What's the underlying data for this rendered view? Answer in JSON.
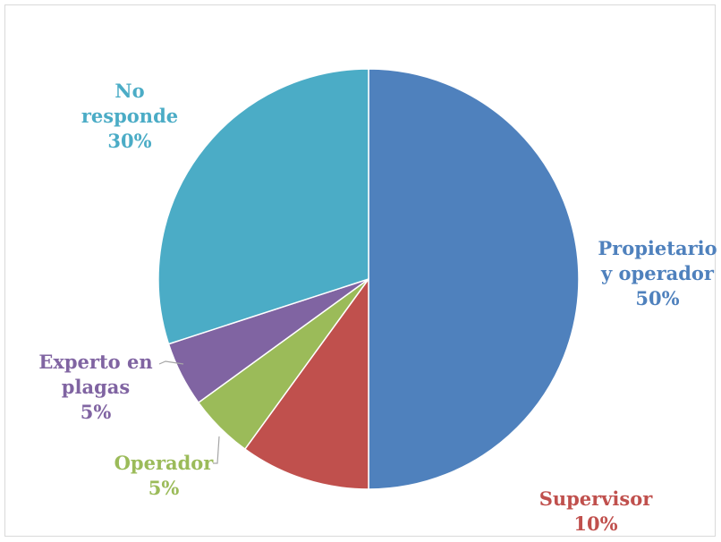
{
  "chart_data": {
    "type": "pie",
    "title": "",
    "start_angle_deg": 0,
    "direction": "clockwise",
    "slices": [
      {
        "label_lines": [
          "Propietario",
          "y operador"
        ],
        "percent_label": "50%",
        "value": 50,
        "color": "#4f81bd",
        "label_color": "#4f81bd"
      },
      {
        "label_lines": [
          "Supervisor"
        ],
        "percent_label": "10%",
        "value": 10,
        "color": "#c0504d",
        "label_color": "#c0504d"
      },
      {
        "label_lines": [
          "Operador"
        ],
        "percent_label": "5%",
        "value": 5,
        "color": "#9bbb59",
        "label_color": "#9bbb59"
      },
      {
        "label_lines": [
          "Experto en",
          "plagas"
        ],
        "percent_label": "5%",
        "value": 5,
        "color": "#8064a2",
        "label_color": "#8064a2"
      },
      {
        "label_lines": [
          "No",
          "responde"
        ],
        "percent_label": "30%",
        "value": 30,
        "color": "#4bacc6",
        "label_color": "#4bacc6"
      }
    ],
    "leader_line_color": "#a6a6a6"
  }
}
